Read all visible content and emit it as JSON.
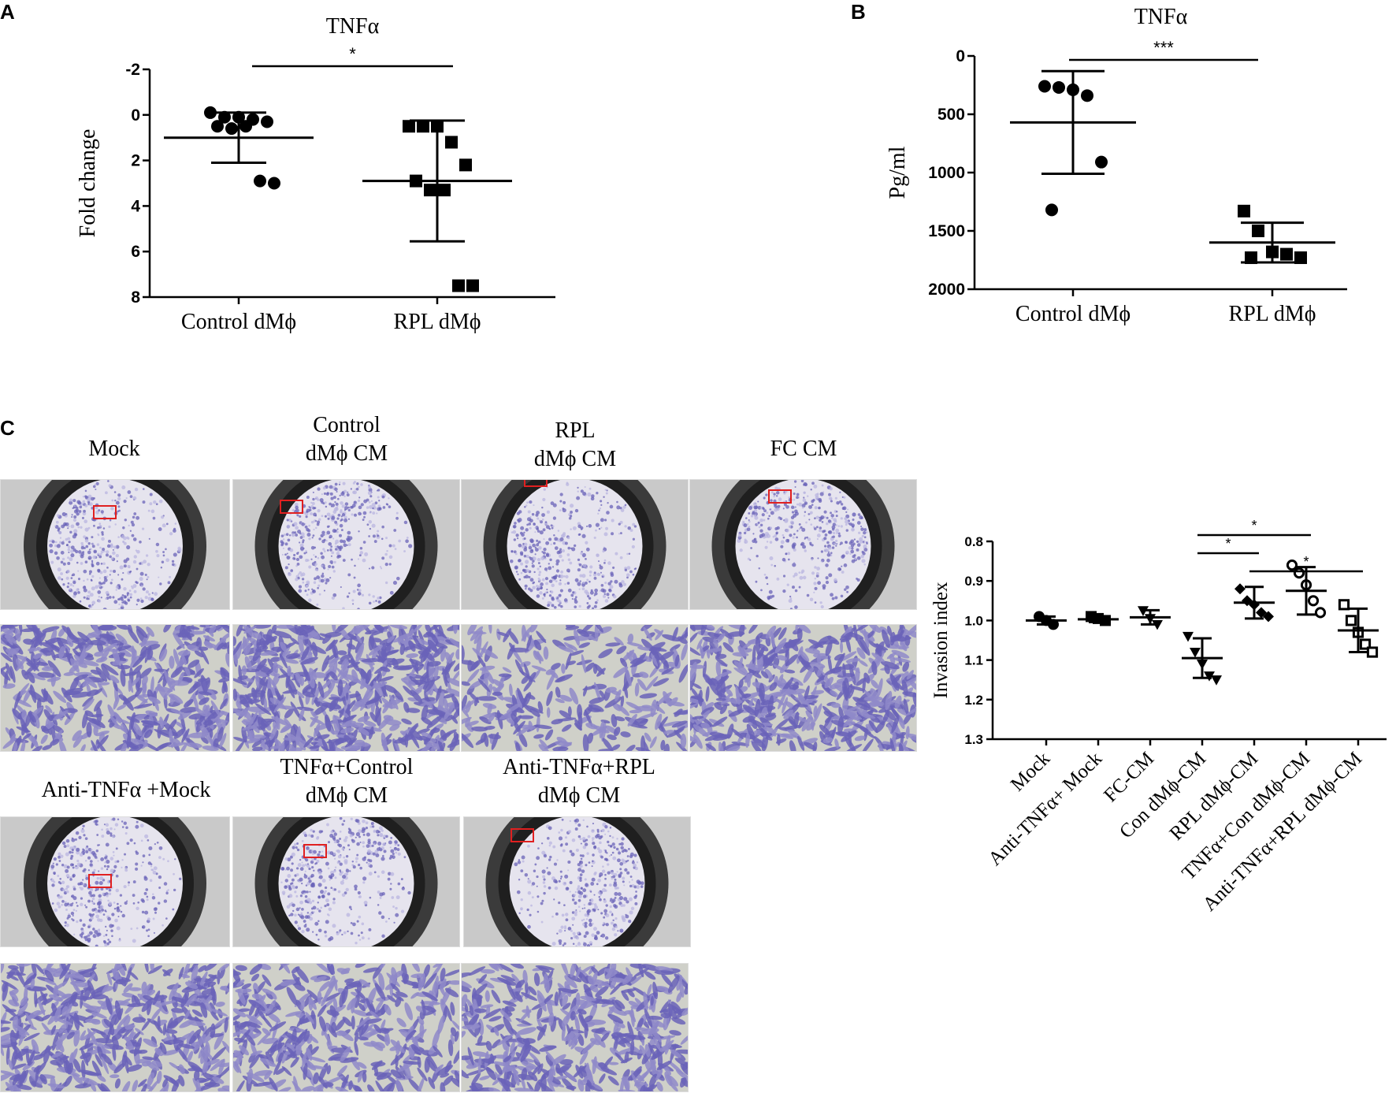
{
  "panels": {
    "a": "A",
    "b": "B",
    "c": "C"
  },
  "chart_data": [
    {
      "id": "A",
      "type": "scatter",
      "title": "TNFα",
      "ylabel": "Fold change",
      "ylim": [
        -2,
        8
      ],
      "yticks": [
        "-2",
        "0",
        "2",
        "4",
        "6",
        "8"
      ],
      "ytick_values": [
        -2,
        0,
        2,
        4,
        6,
        8
      ],
      "categories": [
        "Control dMϕ",
        "RPL dMϕ"
      ],
      "series": [
        {
          "points": [
            -0.1,
            0.1,
            0.1,
            0.2,
            0.3,
            0.5,
            0.6,
            0.5,
            2.9,
            3.0
          ]
        },
        {
          "points": [
            0.5,
            0.5,
            0.5,
            1.2,
            2.2,
            2.9,
            3.3,
            3.3,
            7.5,
            7.5
          ]
        }
      ],
      "mean": [
        1.0,
        2.9
      ],
      "sd": [
        1.1,
        2.65
      ],
      "significance": "*"
    },
    {
      "id": "B",
      "type": "scatter",
      "title": "TNFα",
      "ylabel": "Pg/ml",
      "ylim": [
        0,
        2000
      ],
      "yticks": [
        "0",
        "500",
        "1000",
        "1500",
        "2000"
      ],
      "ytick_values": [
        0,
        500,
        1000,
        1500,
        2000
      ],
      "categories": [
        "Control dMϕ",
        "RPL dMϕ"
      ],
      "series": [
        {
          "points": [
            260,
            270,
            290,
            340,
            910,
            1320
          ]
        },
        {
          "points": [
            1330,
            1500,
            1680,
            1700,
            1730,
            1730
          ]
        }
      ],
      "mean": [
        570,
        1600
      ],
      "sd": [
        440,
        170
      ],
      "significance": "***"
    },
    {
      "id": "C",
      "type": "scatter",
      "ylabel": "Invasion index",
      "ylim": [
        0.8,
        1.3
      ],
      "yticks": [
        "0.8",
        "0.9",
        "1.0",
        "1.1",
        "1.2",
        "1.3"
      ],
      "ytick_values": [
        0.8,
        0.9,
        1.0,
        1.1,
        1.2,
        1.3
      ],
      "categories": [
        "Mock",
        "Anti-TNFα+ Mock",
        "FC-CM",
        "Con dMϕ-CM",
        "RPL dMϕ-CM",
        "TNFα+Con dMϕ-CM",
        "Anti-TNFα+RPL dMϕ-CM"
      ],
      "series": [
        {
          "points": [
            0.99,
            1.0,
            1.01
          ],
          "mean": 1.0,
          "sd": 0.01
        },
        {
          "points": [
            0.99,
            0.995,
            1.0
          ],
          "mean": 0.997,
          "sd": 0.007
        },
        {
          "points": [
            0.975,
            0.995,
            1.01
          ],
          "mean": 0.992,
          "sd": 0.018
        },
        {
          "points": [
            1.04,
            1.08,
            1.11,
            1.14,
            1.15
          ],
          "mean": 1.095,
          "sd": 0.05
        },
        {
          "points": [
            0.92,
            0.95,
            0.96,
            0.98,
            0.99
          ],
          "mean": 0.955,
          "sd": 0.04
        },
        {
          "points": [
            0.86,
            0.88,
            0.91,
            0.95,
            0.98
          ],
          "mean": 0.925,
          "sd": 0.06
        },
        {
          "points": [
            0.96,
            1.0,
            1.03,
            1.06,
            1.08
          ],
          "mean": 1.025,
          "sd": 0.055
        }
      ],
      "brackets": [
        {
          "from": 3,
          "to": 5,
          "label": "*"
        },
        {
          "from": 3,
          "to": 4,
          "label": "*"
        },
        {
          "from": 4,
          "to": 6,
          "label": "*"
        }
      ]
    }
  ],
  "photos": {
    "row1": [
      "Mock",
      "Control\ndMϕ CM",
      "RPL\ndMϕ CM",
      "FC CM"
    ],
    "row2": [
      "Anti-TNFα +Mock",
      "TNFα+Control\ndMϕ CM",
      "Anti-TNFα+RPL\ndMϕ CM"
    ]
  },
  "colors": {
    "stain_dark": "#6a63b8",
    "stain_light": "#b9b6e0",
    "membrane_bg": "#e6e4ee",
    "micro_bg": "#cfd0c9",
    "box": "#e02020"
  }
}
